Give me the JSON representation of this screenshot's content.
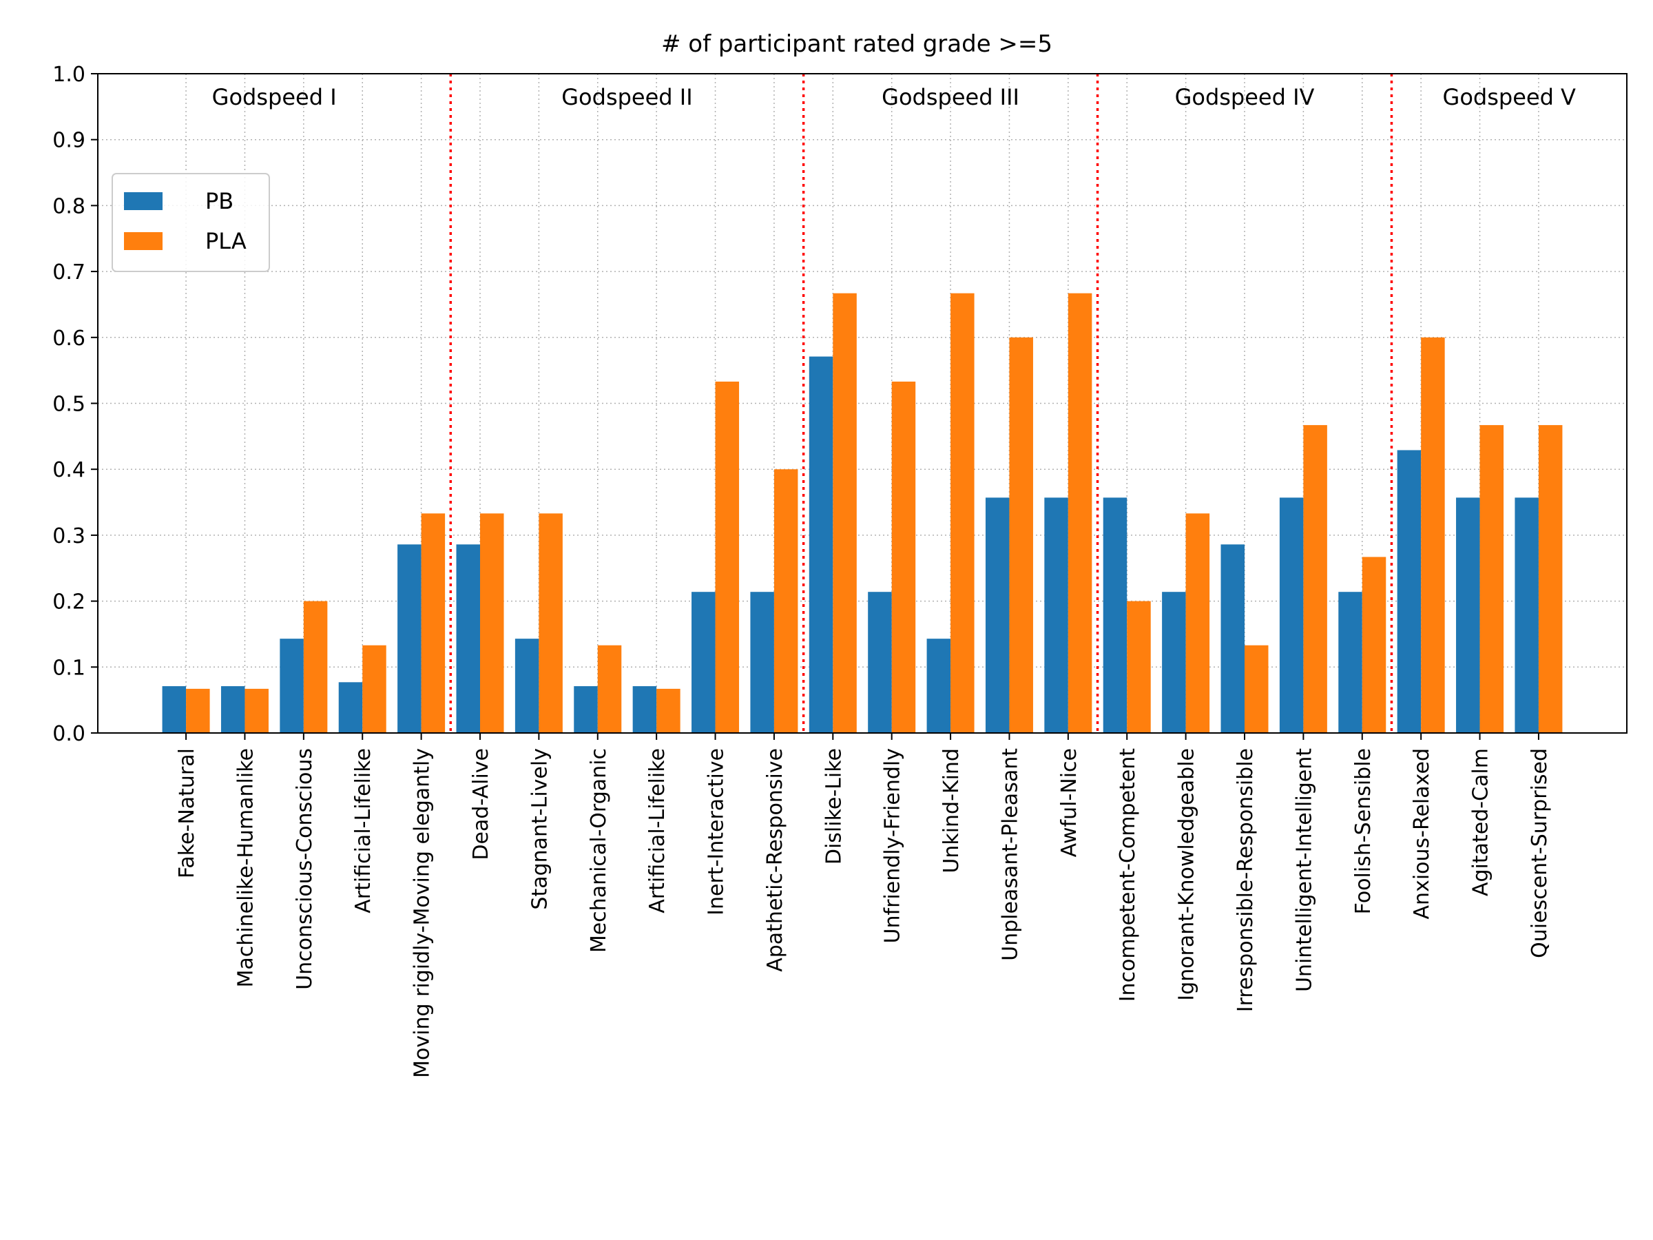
{
  "chart_data": {
    "type": "bar",
    "title": "# of participant rated grade >=5",
    "xlabel": "",
    "ylabel": "",
    "ylim": [
      0,
      1.0
    ],
    "yticks": [
      "0.0",
      "0.1",
      "0.2",
      "0.3",
      "0.4",
      "0.5",
      "0.6",
      "0.7",
      "0.8",
      "0.9",
      "1.0"
    ],
    "grid": true,
    "legend_position": "upper-left",
    "categories": [
      "Fake-Natural",
      "Machinelike-Humanlike",
      "Unconscious-Conscious",
      "Artificial-Lifelike",
      "Moving rigidly-Moving elegantly",
      "Dead-Alive",
      "Stagnant-Lively",
      "Mechanical-Organic",
      "Artificial-Lifelike",
      "Inert-Interactive",
      "Apathetic-Responsive",
      "Dislike-Like",
      "Unfriendly-Friendly",
      "Unkind-Kind",
      "Unpleasant-Pleasant",
      "Awful-Nice",
      "Incompetent-Competent",
      "Ignorant-Knowledgeable",
      "Irresponsible-Responsible",
      "Unintelligent-Intelligent",
      "Foolish-Sensible",
      "Anxious-Relaxed",
      "Agitated-Calm",
      "Quiescent-Surprised"
    ],
    "series": [
      {
        "name": "PB",
        "color": "#1f77b4",
        "values": [
          0.071,
          0.071,
          0.143,
          0.077,
          0.286,
          0.286,
          0.143,
          0.071,
          0.071,
          0.214,
          0.214,
          0.571,
          0.214,
          0.143,
          0.357,
          0.357,
          0.357,
          0.214,
          0.286,
          0.357,
          0.214,
          0.429,
          0.357,
          0.357
        ]
      },
      {
        "name": "PLA",
        "color": "#ff7f0e",
        "values": [
          0.067,
          0.067,
          0.2,
          0.133,
          0.333,
          0.333,
          0.333,
          0.133,
          0.067,
          0.533,
          0.4,
          0.667,
          0.533,
          0.667,
          0.6,
          0.667,
          0.2,
          0.333,
          0.133,
          0.467,
          0.267,
          0.6,
          0.467,
          0.467
        ]
      }
    ],
    "groups": [
      {
        "label": "Godspeed I",
        "start": 0,
        "end": 4
      },
      {
        "label": "Godspeed II",
        "start": 5,
        "end": 10
      },
      {
        "label": "Godspeed III",
        "start": 11,
        "end": 15
      },
      {
        "label": "Godspeed IV",
        "start": 16,
        "end": 20
      },
      {
        "label": "Godspeed V",
        "start": 21,
        "end": 23
      }
    ],
    "separator_color": "#ff0000"
  }
}
